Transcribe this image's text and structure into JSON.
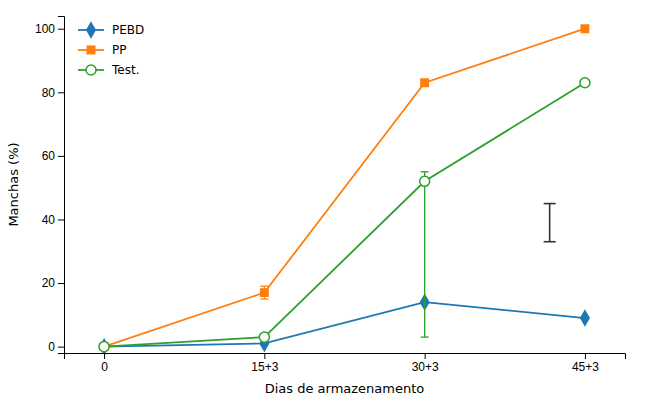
{
  "chart_data": {
    "type": "line",
    "xlabel": "Dias de armazenamento",
    "ylabel": "Manchas (%)",
    "categories": [
      "0",
      "15+3",
      "30+3",
      "45+3"
    ],
    "series": [
      {
        "name": "PEBD",
        "marker": "diamond",
        "values": [
          0,
          1,
          14,
          9
        ]
      },
      {
        "name": "PP",
        "marker": "square",
        "values": [
          0,
          17,
          83,
          100
        ],
        "err_low": [
          null,
          2,
          null,
          null
        ],
        "err_high": [
          null,
          2,
          null,
          null
        ]
      },
      {
        "name": "Test.",
        "marker": "circle-open",
        "values": [
          0,
          3,
          52,
          83
        ],
        "err_low": [
          null,
          null,
          49,
          null
        ],
        "err_high": [
          null,
          null,
          3,
          null
        ]
      }
    ],
    "standalone_bar": {
      "low": 33,
      "high": 45
    },
    "ylim": [
      -2,
      104
    ],
    "yticks": [
      0,
      20,
      40,
      60,
      80,
      100
    ],
    "grid": false,
    "legend": "upper left"
  }
}
